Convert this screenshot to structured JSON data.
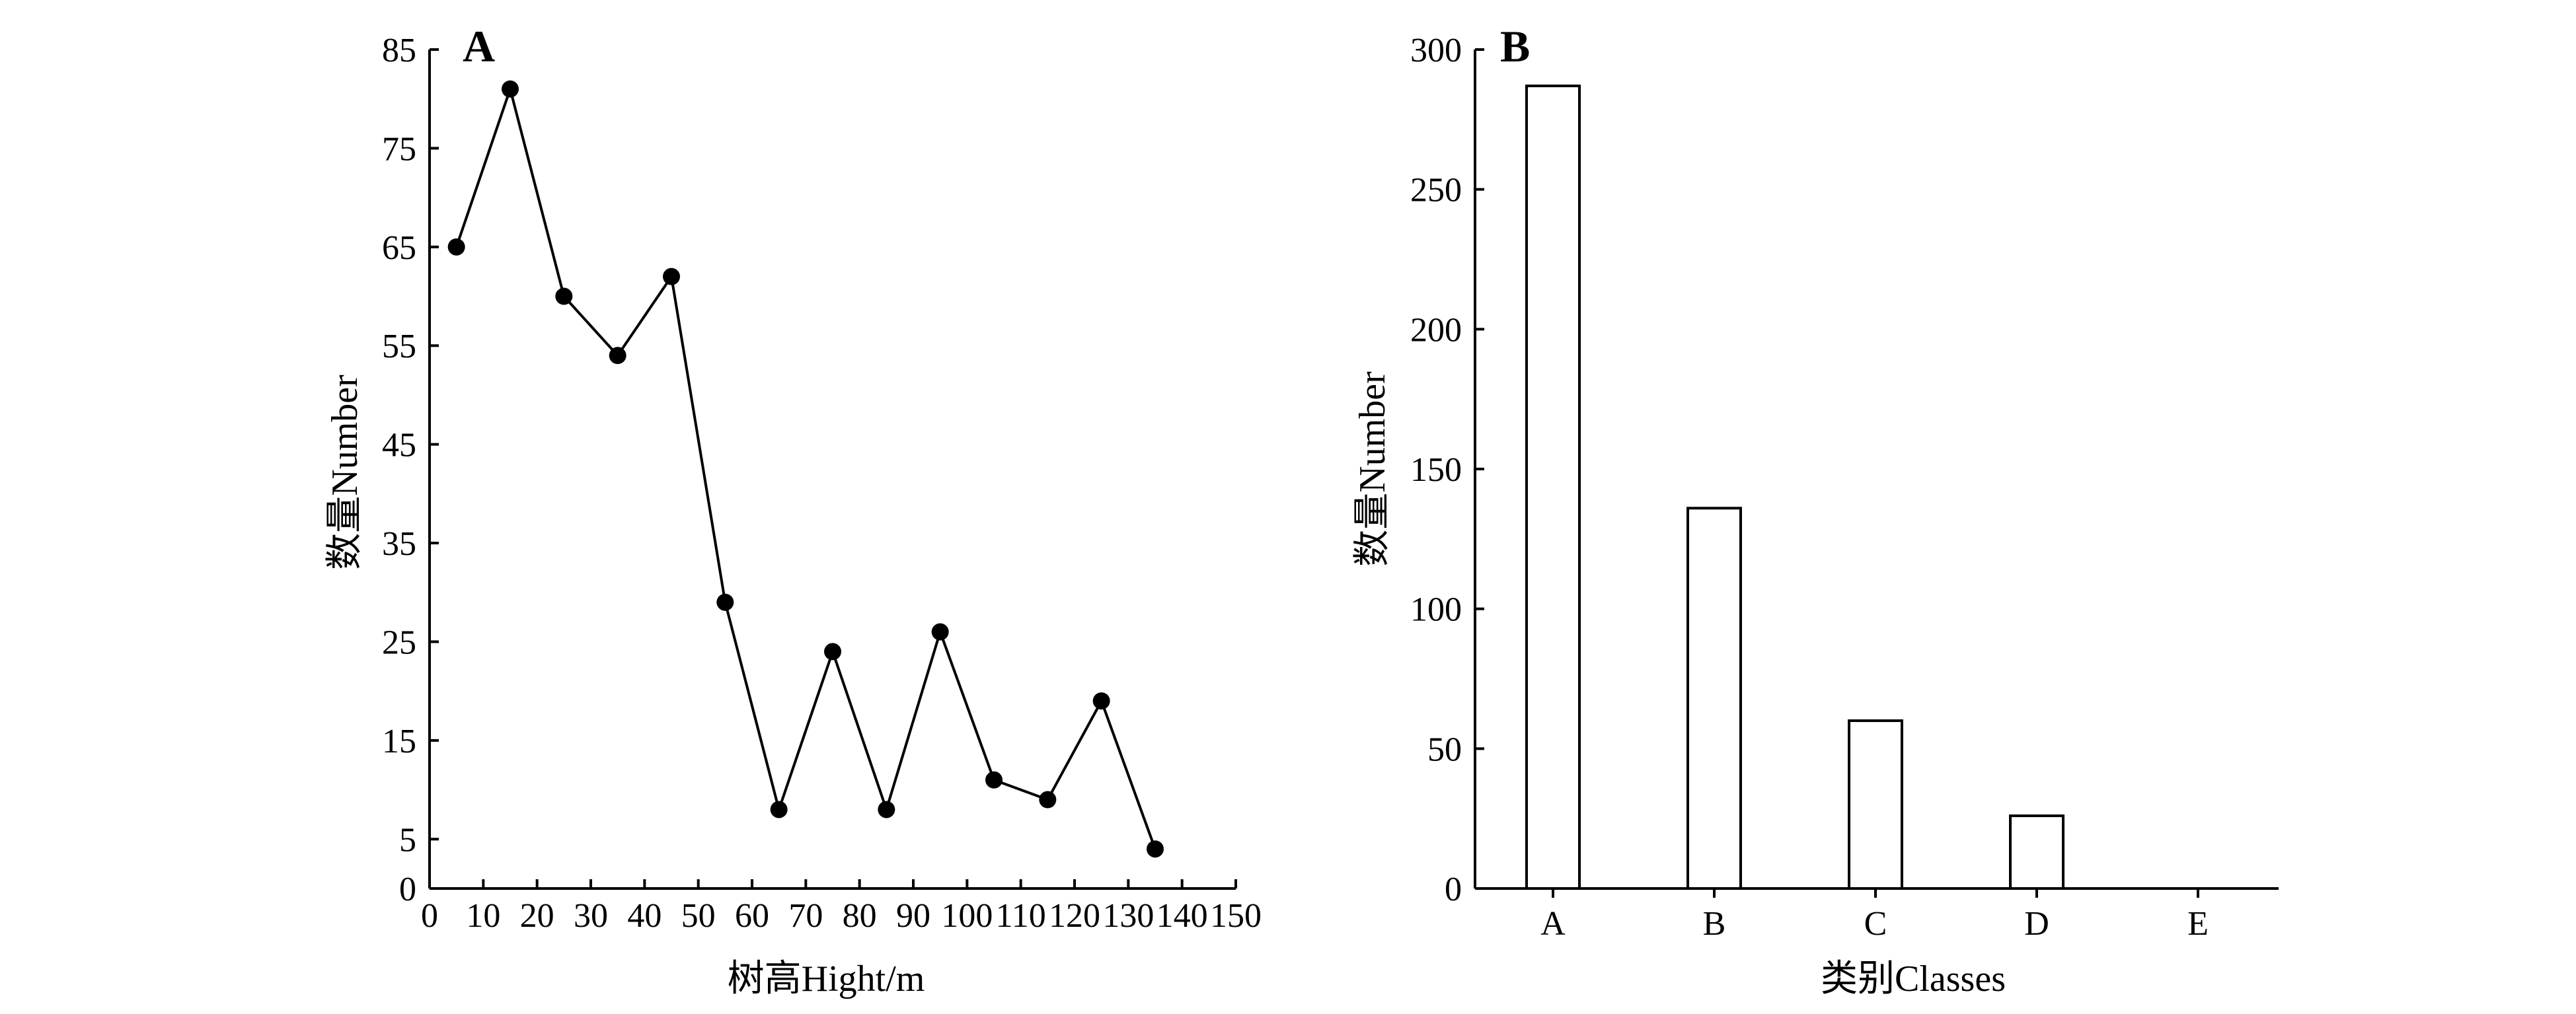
{
  "chart_data": [
    {
      "type": "line",
      "panel_label": "A",
      "xlabel": "树高Hight/m",
      "ylabel": "数量Number",
      "xlim": [
        0,
        150
      ],
      "ylim": [
        0,
        85
      ],
      "x_ticks": [
        0,
        10,
        20,
        30,
        40,
        50,
        60,
        70,
        80,
        90,
        100,
        110,
        120,
        130,
        140,
        150
      ],
      "y_ticks": [
        0,
        5,
        15,
        25,
        35,
        45,
        55,
        65,
        75,
        85
      ],
      "grid": false,
      "marker": "filled-circle",
      "x": [
        5,
        15,
        25,
        35,
        45,
        55,
        65,
        75,
        85,
        95,
        105,
        115,
        125,
        135
      ],
      "y": [
        65,
        81,
        60,
        54,
        62,
        29,
        8,
        24,
        8,
        26,
        11,
        9,
        19,
        4
      ]
    },
    {
      "type": "bar",
      "panel_label": "B",
      "xlabel": "类别Classes",
      "ylabel": "数量Number",
      "ylim": [
        0,
        300
      ],
      "y_ticks": [
        0,
        50,
        100,
        150,
        200,
        250,
        300
      ],
      "grid": false,
      "bar_fill": "#ffffff",
      "bar_stroke": "#000000",
      "categories": [
        "A",
        "B",
        "C",
        "D",
        "E"
      ],
      "values": [
        287,
        136,
        60,
        26,
        0
      ]
    }
  ]
}
